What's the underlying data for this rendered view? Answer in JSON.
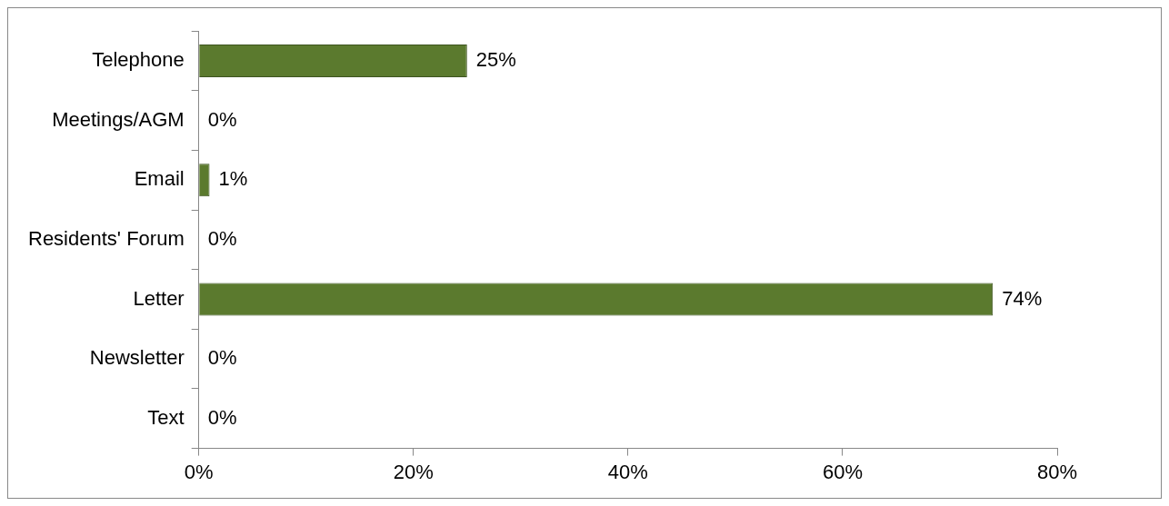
{
  "chart_data": {
    "type": "bar",
    "orientation": "horizontal",
    "categories": [
      "Telephone",
      "Meetings/AGM",
      "Email",
      "Residents' Forum",
      "Letter",
      "Newsletter",
      "Text"
    ],
    "values": [
      25,
      0,
      1,
      0,
      74,
      0,
      0
    ],
    "value_labels": [
      "25%",
      "0%",
      "1%",
      "0%",
      "74%",
      "0%",
      "0%"
    ],
    "color": "#5b7a2e",
    "xlim": [
      0,
      80
    ],
    "xticks": [
      {
        "value": 0,
        "label": "0%"
      },
      {
        "value": 20,
        "label": "20%"
      },
      {
        "value": 40,
        "label": "40%"
      },
      {
        "value": 60,
        "label": "60%"
      },
      {
        "value": 80,
        "label": "80%"
      }
    ],
    "grid": false,
    "legend": false
  }
}
